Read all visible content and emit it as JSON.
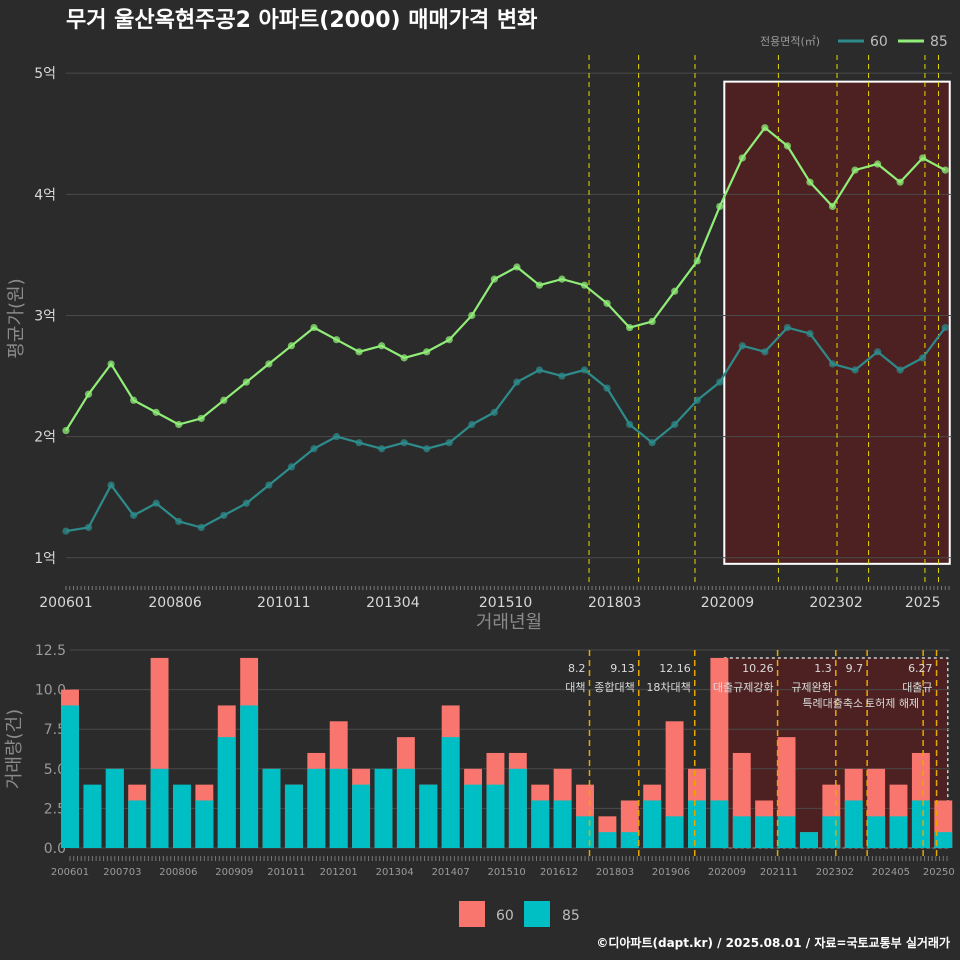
{
  "title": "무거 울산옥현주공2 아파트(2000) 매매가격 변화",
  "footer": "©디아파트(dapt.kr) / 2025.08.01 / 자료=국토교통부 실거래가",
  "colors": {
    "background": "#2b2b2b",
    "grid": "#4a4a4a",
    "series_60": "#2e8b8b",
    "series_85": "#90ee78",
    "bar_60": "#f8766d",
    "bar_85": "#00bfc4",
    "recent_highlight": "#5a1f1f",
    "policy_line": "#e6d800",
    "policy_line_bottom": "#e6a800"
  },
  "chart_data": [
    {
      "type": "line",
      "title": "무거 울산옥현주공2 아파트(2000) 매매가격 변화",
      "xlabel": "거래년월",
      "ylabel": "평균가(원)",
      "x_ticks": [
        "200601",
        "200806",
        "201011",
        "201304",
        "201510",
        "201803",
        "202009",
        "202302",
        "2025"
      ],
      "y_ticks": [
        "1억",
        "2억",
        "3억",
        "4억",
        "5억"
      ],
      "ylim": [
        0.8,
        5.15
      ],
      "y_unit": "억",
      "legend_title": "전용면적(㎡)",
      "legend_position": "top-right",
      "series": [
        {
          "name": "60",
          "x": [
            2006.0,
            2006.5,
            2007.0,
            2007.5,
            2008.0,
            2008.5,
            2009.0,
            2009.5,
            2010.0,
            2010.5,
            2011.0,
            2011.5,
            2012.0,
            2012.5,
            2013.0,
            2013.5,
            2014.0,
            2014.5,
            2015.0,
            2015.5,
            2016.0,
            2016.5,
            2017.0,
            2017.5,
            2018.0,
            2018.5,
            2019.0,
            2019.5,
            2020.0,
            2020.5,
            2021.0,
            2021.5,
            2022.0,
            2022.5,
            2023.0,
            2023.5,
            2024.0,
            2024.5,
            2025.0,
            2025.5
          ],
          "y": [
            1.22,
            1.25,
            1.6,
            1.35,
            1.45,
            1.3,
            1.25,
            1.35,
            1.45,
            1.6,
            1.75,
            1.9,
            2.0,
            1.95,
            1.9,
            1.95,
            1.9,
            1.95,
            2.1,
            2.2,
            2.45,
            2.55,
            2.5,
            2.55,
            2.4,
            2.1,
            1.95,
            2.1,
            2.3,
            2.45,
            2.75,
            2.7,
            2.9,
            2.85,
            2.6,
            2.55,
            2.7,
            2.55,
            2.65,
            2.9
          ]
        },
        {
          "name": "85",
          "x": [
            2006.0,
            2006.5,
            2007.0,
            2007.5,
            2008.0,
            2008.5,
            2009.0,
            2009.5,
            2010.0,
            2010.5,
            2011.0,
            2011.5,
            2012.0,
            2012.5,
            2013.0,
            2013.5,
            2014.0,
            2014.5,
            2015.0,
            2015.5,
            2016.0,
            2016.5,
            2017.0,
            2017.5,
            2018.0,
            2018.5,
            2019.0,
            2019.5,
            2020.0,
            2020.5,
            2021.0,
            2021.5,
            2022.0,
            2022.5,
            2023.0,
            2023.5,
            2024.0,
            2024.5,
            2025.0,
            2025.5
          ],
          "y": [
            2.05,
            2.35,
            2.6,
            2.3,
            2.2,
            2.1,
            2.15,
            2.3,
            2.45,
            2.6,
            2.75,
            2.9,
            2.8,
            2.7,
            2.75,
            2.65,
            2.7,
            2.8,
            3.0,
            3.3,
            3.4,
            3.25,
            3.3,
            3.25,
            3.1,
            2.9,
            2.95,
            3.2,
            3.45,
            3.9,
            4.3,
            4.55,
            4.4,
            4.1,
            3.9,
            4.2,
            4.25,
            4.1,
            4.3,
            4.2
          ]
        }
      ],
      "policy_lines_x": [
        2017.6,
        2018.7,
        2019.95,
        2021.8,
        2023.1,
        2023.8,
        2025.05,
        2025.35
      ],
      "highlight_box_x": [
        2020.6,
        2025.6
      ],
      "highlight_box_y": [
        0.95,
        4.93
      ]
    },
    {
      "type": "bar",
      "ylabel": "거래량(건)",
      "y_ticks": [
        "0.0",
        "2.5",
        "5.0",
        "7.5",
        "10.0",
        "12.5"
      ],
      "ylim": [
        0,
        12.5
      ],
      "x_ticks": [
        "200601",
        "200703",
        "200806",
        "200909",
        "201011",
        "201201",
        "201304",
        "201407",
        "201510",
        "201612",
        "201803",
        "201906",
        "202009",
        "202111",
        "202302",
        "202405",
        "20250"
      ],
      "legend": [
        "60",
        "85"
      ],
      "legend_position": "bottom",
      "series": [
        {
          "name": "60",
          "x": [
            2006.0,
            2006.5,
            2007.0,
            2007.5,
            2008.0,
            2008.5,
            2009.0,
            2009.5,
            2010.0,
            2010.5,
            2011.0,
            2011.5,
            2012.0,
            2012.5,
            2013.0,
            2013.5,
            2014.0,
            2014.5,
            2015.0,
            2015.5,
            2016.0,
            2016.5,
            2017.0,
            2017.5,
            2018.0,
            2018.5,
            2019.0,
            2019.5,
            2020.0,
            2020.5,
            2021.0,
            2021.5,
            2022.0,
            2022.5,
            2023.0,
            2023.5,
            2024.0,
            2024.5,
            2025.0,
            2025.5
          ],
          "values": [
            10,
            3,
            5,
            4,
            12,
            3,
            4,
            9,
            12,
            5,
            4,
            6,
            8,
            5,
            3,
            7,
            4,
            9,
            5,
            6,
            6,
            4,
            5,
            4,
            2,
            3,
            4,
            8,
            5,
            12,
            6,
            3,
            7,
            1,
            4,
            5,
            5,
            4,
            6,
            3
          ]
        },
        {
          "name": "85",
          "x": [
            2006.0,
            2006.5,
            2007.0,
            2007.5,
            2008.0,
            2008.5,
            2009.0,
            2009.5,
            2010.0,
            2010.5,
            2011.0,
            2011.5,
            2012.0,
            2012.5,
            2013.0,
            2013.5,
            2014.0,
            2014.5,
            2015.0,
            2015.5,
            2016.0,
            2016.5,
            2017.0,
            2017.5,
            2018.0,
            2018.5,
            2019.0,
            2019.5,
            2020.0,
            2020.5,
            2021.0,
            2021.5,
            2022.0,
            2022.5,
            2023.0,
            2023.5,
            2024.0,
            2024.5,
            2025.0,
            2025.5
          ],
          "values": [
            9,
            4,
            5,
            3,
            5,
            4,
            3,
            7,
            9,
            5,
            4,
            5,
            5,
            4,
            5,
            5,
            4,
            7,
            4,
            4,
            5,
            3,
            3,
            2,
            1,
            1,
            3,
            2,
            3,
            3,
            2,
            2,
            2,
            1,
            2,
            3,
            2,
            2,
            3,
            1
          ]
        }
      ],
      "policy_annotations": [
        {
          "x": 2017.6,
          "date": "8.2",
          "label": "대책"
        },
        {
          "x": 2018.7,
          "date": "9.13",
          "label": "종합대책"
        },
        {
          "x": 2019.95,
          "date": "12.16",
          "label": "18차대책"
        },
        {
          "x": 2021.8,
          "date": "10.26",
          "label": "대출규제강화"
        },
        {
          "x": 2023.1,
          "date": "1.3",
          "label": "규제완화"
        },
        {
          "x": 2023.8,
          "date": "9.7",
          "label": "특례대출축소"
        },
        {
          "x": 2025.05,
          "date": "",
          "label": "토허제 해제"
        },
        {
          "x": 2025.35,
          "date": "6.27",
          "label": "대출규"
        }
      ]
    }
  ]
}
